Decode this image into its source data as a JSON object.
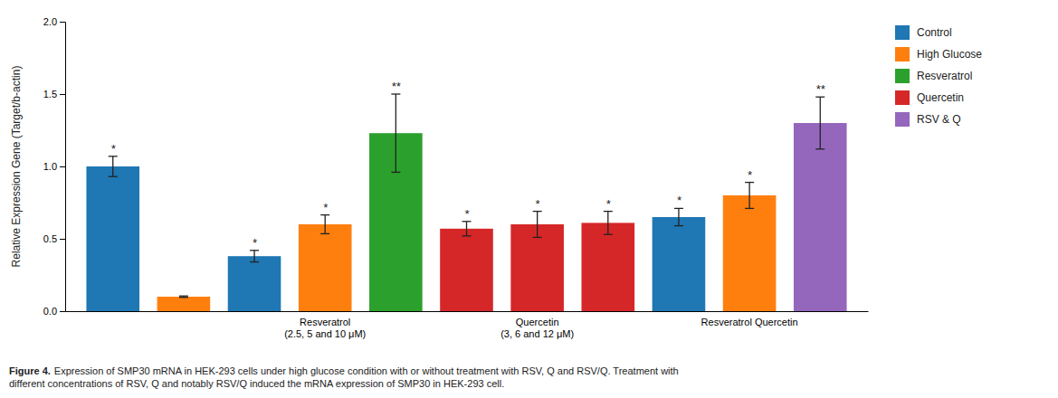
{
  "chart_data": {
    "type": "bar",
    "ylabel": "Relative Expression Gene (Target/b-actin)",
    "categories": [
      null,
      null,
      null,
      "Resveratrol\n(2.5, 5 and 10 μM)",
      null,
      null,
      "Quercetin\n(3, 6 and 12 μM)",
      null,
      null,
      "Resveratrol Quercetin",
      null
    ],
    "series": [
      {
        "name": "Control",
        "values": [
          1.0,
          null,
          0.38,
          null,
          null,
          null,
          null,
          null,
          0.65,
          null,
          null
        ],
        "errors": [
          0.07,
          null,
          0.04,
          null,
          null,
          null,
          null,
          null,
          0.06,
          null,
          null
        ],
        "sig_labels": [
          "*",
          null,
          "*",
          null,
          null,
          null,
          null,
          null,
          "*",
          null,
          null
        ]
      },
      {
        "name": "High Glucose",
        "values": [
          null,
          0.1,
          null,
          0.6,
          null,
          null,
          null,
          null,
          null,
          0.8,
          null
        ],
        "errors": [
          null,
          0.005,
          null,
          0.065,
          null,
          null,
          null,
          null,
          null,
          0.09,
          null
        ],
        "sig_labels": [
          null,
          null,
          null,
          "*",
          null,
          null,
          null,
          null,
          null,
          "*",
          null
        ]
      },
      {
        "name": "Resveratrol",
        "values": [
          null,
          null,
          null,
          null,
          1.23,
          null,
          null,
          null,
          null,
          null,
          null
        ],
        "errors": [
          null,
          null,
          null,
          null,
          0.27,
          null,
          null,
          null,
          null,
          null,
          null
        ],
        "sig_labels": [
          null,
          null,
          null,
          null,
          "**",
          null,
          null,
          null,
          null,
          null,
          null
        ]
      },
      {
        "name": "Quercetin",
        "values": [
          null,
          null,
          null,
          null,
          null,
          0.57,
          0.6,
          0.61,
          null,
          null,
          null
        ],
        "errors": [
          null,
          null,
          null,
          null,
          null,
          0.05,
          0.09,
          0.08,
          null,
          null,
          null
        ],
        "sig_labels": [
          null,
          null,
          null,
          null,
          null,
          "*",
          "*",
          "*",
          null,
          null,
          null
        ]
      },
      {
        "name": "RSV & Q",
        "values": [
          null,
          null,
          null,
          null,
          null,
          null,
          null,
          null,
          null,
          null,
          1.3
        ],
        "errors": [
          null,
          null,
          null,
          null,
          null,
          null,
          null,
          null,
          null,
          null,
          0.18
        ],
        "sig_labels": [
          null,
          null,
          null,
          null,
          null,
          null,
          null,
          null,
          null,
          null,
          "**"
        ]
      }
    ],
    "ylim": [
      0,
      2.0
    ],
    "yticks": [
      {
        "value": 0.0,
        "label": "0.0"
      },
      0.5,
      {
        "value": 1.0,
        "label": "1.0"
      },
      1.5,
      {
        "value": 2.0,
        "label": "2.0"
      }
    ],
    "grid": false,
    "legend": "right",
    "caption_bold": "Figure 4.",
    "caption": "Expression of SMP30 mRNA in HEK-293 cells under high glucose condition with or without treatment with RSV, Q and RSV/Q. Treatment with\ndifferent concentrations of RSV, Q and notably RSV/Q induced the mRNA expression of SMP30 in HEK-293 cell."
  }
}
